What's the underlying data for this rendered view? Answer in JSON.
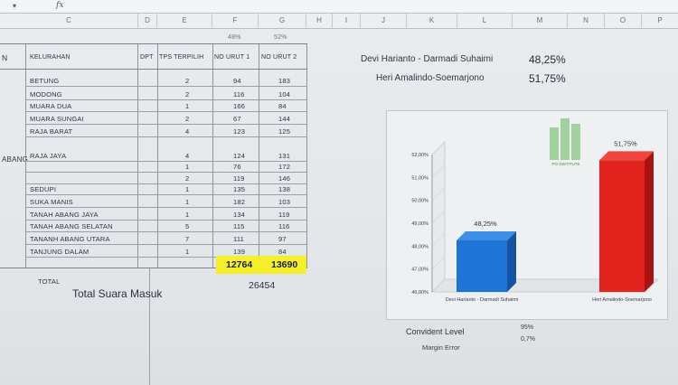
{
  "toolbar": {
    "fx_label": "fx",
    "name_box_caret": "▾"
  },
  "columns": [
    "C",
    "D",
    "E",
    "F",
    "G",
    "H",
    "I",
    "J",
    "K",
    "L",
    "M",
    "N",
    "O",
    "P"
  ],
  "table": {
    "headers": {
      "kec": "N",
      "kelurahan": "KELURAHAN",
      "dpt": "DPT",
      "tps": "TPS TERPILIH",
      "no1": "NO URUT 1",
      "no2": "NO URUT 2"
    },
    "pct_header_1": "48%",
    "pct_header_2": "52%",
    "kecamatan_label": "ABANG",
    "rows": [
      {
        "kelurahan": "BETUNG",
        "tps": "2",
        "no1": "94",
        "no2": "183"
      },
      {
        "kelurahan": "MODONG",
        "tps": "2",
        "no1": "116",
        "no2": "104"
      },
      {
        "kelurahan": "MUARA DUA",
        "tps": "1",
        "no1": "166",
        "no2": "84"
      },
      {
        "kelurahan": "MUARA SUNGAI",
        "tps": "2",
        "no1": "67",
        "no2": "144"
      },
      {
        "kelurahan": "RAJA BARAT",
        "tps": "4",
        "no1": "123",
        "no2": "125"
      },
      {
        "kelurahan": "RAJA JAYA",
        "tps": "4",
        "no1": "124",
        "no2": "131"
      },
      {
        "kelurahan": "",
        "tps": "1",
        "no1": "76",
        "no2": "172"
      },
      {
        "kelurahan": "",
        "tps": "2",
        "no1": "119",
        "no2": "146"
      },
      {
        "kelurahan": "SEDUPI",
        "tps": "1",
        "no1": "135",
        "no2": "138"
      },
      {
        "kelurahan": "SUKA MANIS",
        "tps": "1",
        "no1": "182",
        "no2": "103"
      },
      {
        "kelurahan": "TANAH ABANG JAYA",
        "tps": "1",
        "no1": "134",
        "no2": "119"
      },
      {
        "kelurahan": "TANAH ABANG SELATAN",
        "tps": "5",
        "no1": "115",
        "no2": "116"
      },
      {
        "kelurahan": "TANANH ABANG UTARA",
        "tps": "7",
        "no1": "111",
        "no2": "97"
      },
      {
        "kelurahan": "TANJUNG DALAM",
        "tps": "1",
        "no1": "139",
        "no2": "84"
      }
    ],
    "total_label": "TOTAL",
    "total_no1": "12764",
    "total_no2": "13690",
    "total_suara_label": "Total Suara Masuk",
    "total_suara_value": "26454"
  },
  "summary": {
    "cand1_name": "Devi Harianto - Darmadi Suhaimi",
    "cand1_pct": "48,25%",
    "cand2_name": "Heri Amalindo-Soemarjono",
    "cand2_pct": "51,75%"
  },
  "chart_data": {
    "type": "bar",
    "categories": [
      "Devi Harianto - Darmadi Suhaimi",
      "Heri Amalindo-Soemarjono"
    ],
    "values": [
      48.25,
      51.75
    ],
    "data_labels": [
      "48,25%",
      "51,75%"
    ],
    "y_ticks": [
      "46,00%",
      "47,00%",
      "48,00%",
      "49,00%",
      "50,00%",
      "51,00%",
      "52,00%"
    ],
    "ylim": [
      46,
      52
    ],
    "colors": [
      "#1f74d6",
      "#e3231d"
    ],
    "logo_text": "PO INSTITUTE"
  },
  "footer": {
    "confident_label": "Convident Level",
    "confident_value": "95%",
    "margin_label": "Margin Error",
    "margin_value": "0,7%"
  }
}
